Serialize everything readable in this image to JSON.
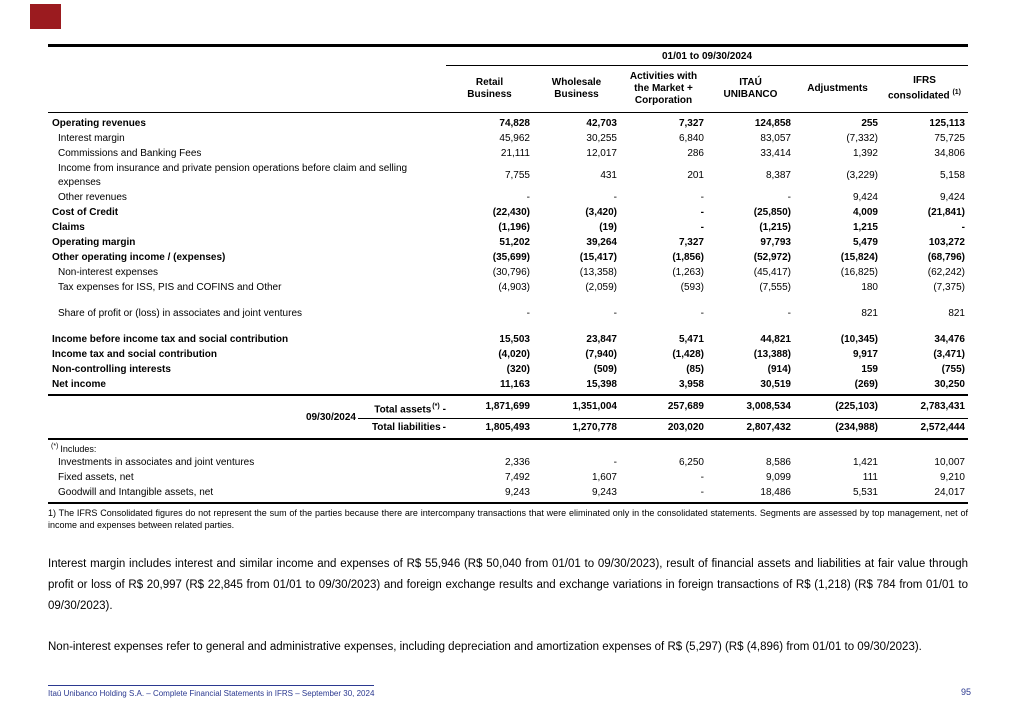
{
  "colors": {
    "brand_red": "#9B1B1F",
    "footer_blue": "#2B3990"
  },
  "table": {
    "period_header": "01/01 to 09/30/2024",
    "columns": [
      "Retail\nBusiness",
      "Wholesale\nBusiness",
      "Activities with\nthe Market +\nCorporation",
      "ITAÚ\nUNIBANCO",
      "Adjustments",
      "IFRS\nconsolidated"
    ],
    "ifrs_footnote_marker": "(1)",
    "rows": [
      {
        "label": "Operating revenues",
        "style": "bold",
        "values": [
          "74,828",
          "42,703",
          "7,327",
          "124,858",
          "255",
          "125,113"
        ]
      },
      {
        "label": "Interest margin",
        "style": "sub",
        "values": [
          "45,962",
          "30,255",
          "6,840",
          "83,057",
          "(7,332)",
          "75,725"
        ]
      },
      {
        "label": "Commissions and Banking Fees",
        "style": "sub",
        "values": [
          "21,111",
          "12,017",
          "286",
          "33,414",
          "1,392",
          "34,806"
        ]
      },
      {
        "label": "Income from insurance and private pension operations before claim and selling expenses",
        "style": "sub",
        "values": [
          "7,755",
          "431",
          "201",
          "8,387",
          "(3,229)",
          "5,158"
        ]
      },
      {
        "label": "Other revenues",
        "style": "sub",
        "values": [
          "-",
          "-",
          "-",
          "-",
          "9,424",
          "9,424"
        ]
      },
      {
        "label": "Cost of Credit",
        "style": "bold",
        "values": [
          "(22,430)",
          "(3,420)",
          "-",
          "(25,850)",
          "4,009",
          "(21,841)"
        ]
      },
      {
        "label": "Claims",
        "style": "bold",
        "values": [
          "(1,196)",
          "(19)",
          "-",
          "(1,215)",
          "1,215",
          "-"
        ]
      },
      {
        "label": "Operating margin",
        "style": "bold",
        "values": [
          "51,202",
          "39,264",
          "7,327",
          "97,793",
          "5,479",
          "103,272"
        ]
      },
      {
        "label": "Other operating income / (expenses)",
        "style": "bold",
        "values": [
          "(35,699)",
          "(15,417)",
          "(1,856)",
          "(52,972)",
          "(15,824)",
          "(68,796)"
        ]
      },
      {
        "label": "Non-interest expenses",
        "style": "sub",
        "values": [
          "(30,796)",
          "(13,358)",
          "(1,263)",
          "(45,417)",
          "(16,825)",
          "(62,242)"
        ]
      },
      {
        "label": "Tax expenses for ISS, PIS and COFINS and Other",
        "style": "sub",
        "values": [
          "(4,903)",
          "(2,059)",
          "(593)",
          "(7,555)",
          "180",
          "(7,375)"
        ]
      },
      {
        "label": "Share of profit or (loss) in associates and joint ventures",
        "style": "sub gap gapb",
        "values": [
          "-",
          "-",
          "-",
          "-",
          "821",
          "821"
        ]
      },
      {
        "label": "Income before income tax and social contribution",
        "style": "bold gap",
        "values": [
          "15,503",
          "23,847",
          "5,471",
          "44,821",
          "(10,345)",
          "34,476"
        ]
      },
      {
        "label": "Income tax and social contribution",
        "style": "bold",
        "values": [
          "(4,020)",
          "(7,940)",
          "(1,428)",
          "(13,388)",
          "9,917",
          "(3,471)"
        ]
      },
      {
        "label": "Non-controlling interests",
        "style": "bold",
        "values": [
          "(320)",
          "(509)",
          "(85)",
          "(914)",
          "159",
          "(755)"
        ]
      },
      {
        "label": "Net income",
        "style": "bold",
        "values": [
          "11,163",
          "15,398",
          "3,958",
          "30,519",
          "(269)",
          "30,250"
        ]
      }
    ]
  },
  "totals": {
    "date_label": "09/30/2024",
    "rows": [
      {
        "label": "Total assets",
        "marker": "(*)",
        "suffix": "-",
        "values": [
          "1,871,699",
          "1,351,004",
          "257,689",
          "3,008,534",
          "(225,103)",
          "2,783,431"
        ]
      },
      {
        "label": "Total liabilities",
        "marker": "",
        "suffix": "-",
        "values": [
          "1,805,493",
          "1,270,778",
          "203,020",
          "2,807,432",
          "(234,988)",
          "2,572,444"
        ]
      }
    ]
  },
  "includes": {
    "marker": "(*)",
    "title": "Includes:",
    "rows": [
      {
        "label": "Investments in associates and joint ventures",
        "values": [
          "2,336",
          "-",
          "6,250",
          "8,586",
          "1,421",
          "10,007"
        ]
      },
      {
        "label": "Fixed assets, net",
        "values": [
          "7,492",
          "1,607",
          "-",
          "9,099",
          "111",
          "9,210"
        ]
      },
      {
        "label": "Goodwill and Intangible assets, net",
        "values": [
          "9,243",
          "9,243",
          "-",
          "18,486",
          "5,531",
          "24,017"
        ]
      }
    ]
  },
  "footnote": "1) The IFRS Consolidated figures do not represent the sum of the parties because there are intercompany transactions that were eliminated only in the consolidated statements. Segments are assessed by top management, net of income and expenses between related parties.",
  "paragraphs": [
    "Interest margin includes interest and similar income and expenses of R$ 55,946 (R$ 50,040 from 01/01 to 09/30/2023), result of financial assets and liabilities at fair value through profit or loss of R$ 20,997 (R$ 22,845 from 01/01 to 09/30/2023) and foreign exchange results and exchange variations in foreign transactions of R$ (1,218) (R$ 784 from 01/01 to 09/30/2023).",
    "Non-interest expenses refer to general and administrative expenses, including depreciation and amortization expenses of R$ (5,297) (R$ (4,896) from 01/01 to 09/30/2023)."
  ],
  "footer": {
    "left": "Itaú Unibanco Holding S.A. – Complete Financial Statements in IFRS – September 30, 2024",
    "page_number": "95"
  }
}
